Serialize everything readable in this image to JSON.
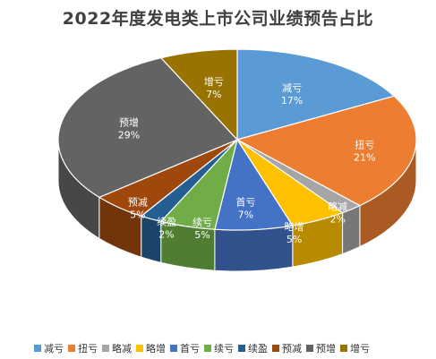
{
  "chart_data": {
    "type": "pie",
    "title": "2022年度发电类上市公司业绩预告占比",
    "style": "3d",
    "legend_position": "bottom",
    "categories": [
      "减亏",
      "扭亏",
      "略减",
      "略增",
      "首亏",
      "续亏",
      "续盈",
      "预减",
      "预增",
      "增亏"
    ],
    "values": [
      17,
      21,
      2,
      5,
      7,
      5,
      2,
      5,
      29,
      7
    ],
    "labels": [
      "17%",
      "21%",
      "2%",
      "5%",
      "7%",
      "5%",
      "2%",
      "5%",
      "29%",
      "7%"
    ],
    "colors": [
      "#5B9BD5",
      "#ED7D31",
      "#A5A5A5",
      "#FFC000",
      "#4472C4",
      "#70AD47",
      "#255E91",
      "#9E480E",
      "#636363",
      "#997300"
    ]
  }
}
